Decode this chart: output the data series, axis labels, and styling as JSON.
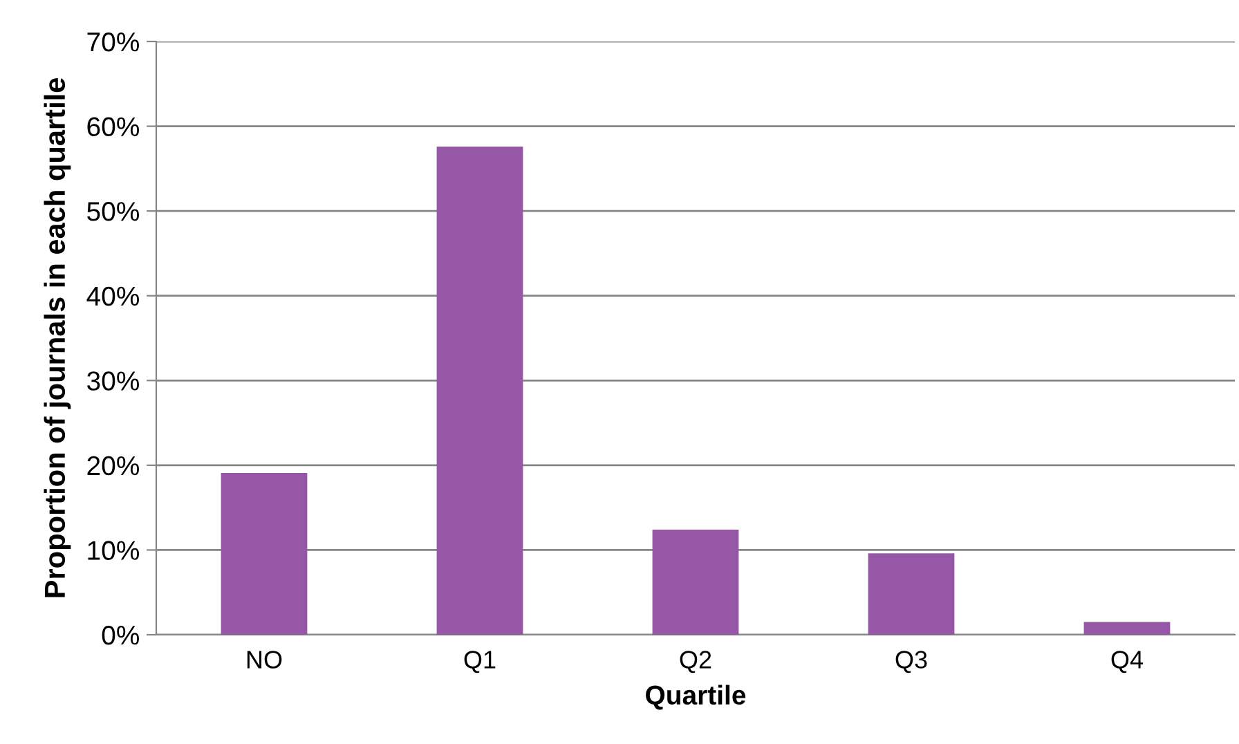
{
  "chart_data": {
    "type": "bar",
    "xlabel": "Quartile",
    "ylabel": "Proportion of journals in each quartile",
    "categories": [
      "NO",
      "Q1",
      "Q2",
      "Q3",
      "Q4"
    ],
    "values": [
      19.1,
      57.6,
      12.4,
      9.6,
      1.5
    ],
    "color": "#9658a6",
    "ylim": [
      0,
      70
    ],
    "yticks": [
      {
        "value": 0,
        "label": "0%"
      },
      {
        "value": 10,
        "label": "10%"
      },
      {
        "value": 20,
        "label": "20%"
      },
      {
        "value": 30,
        "label": "30%"
      },
      {
        "value": 40,
        "label": "40%"
      },
      {
        "value": 50,
        "label": "50%"
      },
      {
        "value": 60,
        "label": "60%"
      },
      {
        "value": 70,
        "label": "70%"
      }
    ],
    "grid": "y"
  }
}
